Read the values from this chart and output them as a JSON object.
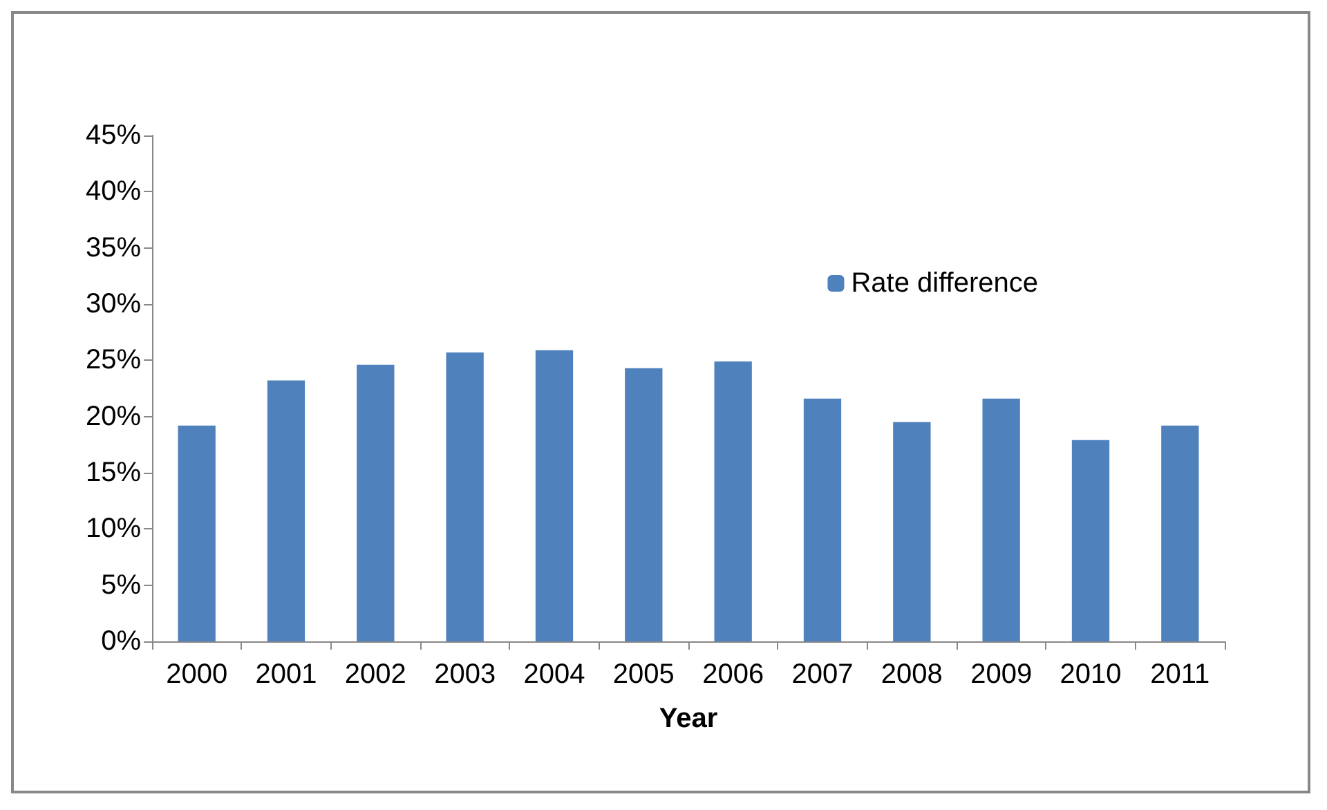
{
  "chart_data": {
    "type": "bar",
    "xlabel": "Year",
    "categories": [
      "2000",
      "2001",
      "2002",
      "2003",
      "2004",
      "2005",
      "2006",
      "2007",
      "2008",
      "2009",
      "2010",
      "2011"
    ],
    "series": [
      {
        "name": "Rate difference",
        "color": "#4f81bd",
        "values": [
          19.2,
          23.2,
          24.6,
          25.7,
          25.9,
          24.3,
          24.9,
          21.6,
          19.5,
          21.6,
          17.9,
          19.2
        ]
      }
    ],
    "ylim": [
      0,
      45
    ],
    "yticks": [
      {
        "value": 0,
        "label": "0%"
      },
      {
        "value": 5,
        "label": "5%"
      },
      {
        "value": 10,
        "label": "10%"
      },
      {
        "value": 15,
        "label": "15%"
      },
      {
        "value": 20,
        "label": "20%"
      },
      {
        "value": 25,
        "label": "25%"
      },
      {
        "value": 30,
        "label": "30%"
      },
      {
        "value": 35,
        "label": "35%"
      },
      {
        "value": 40,
        "label": "40%"
      },
      {
        "value": 45,
        "label": "45%"
      }
    ],
    "grid": false,
    "legend": "top right"
  }
}
